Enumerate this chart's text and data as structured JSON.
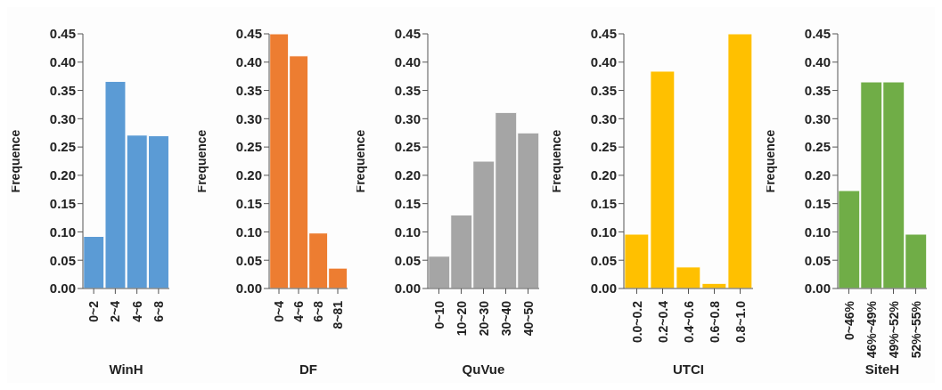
{
  "chart_data": [
    {
      "type": "bar",
      "categories": [
        "0~2",
        "2~4",
        "4~6",
        "6~8"
      ],
      "values": [
        0.092,
        0.366,
        0.271,
        0.27
      ],
      "color": "#5b9bd5",
      "xlabel": "WinH",
      "ylabel": "Frequence",
      "ylim": [
        0,
        0.45
      ],
      "yticks": [
        {
          "value": 0,
          "label": "0.00"
        },
        {
          "value": 0.05,
          "label": "0.05"
        },
        {
          "value": 0.1,
          "label": "0.10"
        },
        {
          "value": 0.15,
          "label": "0.15"
        },
        {
          "value": 0.2,
          "label": "0.20"
        },
        {
          "value": 0.25,
          "label": "0.25"
        },
        {
          "value": 0.3,
          "label": "0.30"
        },
        {
          "value": 0.35,
          "label": "0.35"
        },
        {
          "value": 0.4,
          "label": "0.40"
        },
        {
          "value": 0.45,
          "label": "0.45"
        }
      ]
    },
    {
      "type": "bar",
      "categories": [
        "0~4",
        "4~6",
        "6~8",
        "8~81"
      ],
      "values": [
        0.45,
        0.411,
        0.098,
        0.036
      ],
      "color": "#ed7d31",
      "xlabel": "DF",
      "ylabel": "Frequence",
      "ylim": [
        0,
        0.45
      ],
      "yticks": [
        {
          "value": 0,
          "label": "0.00"
        },
        {
          "value": 0.05,
          "label": "0.05"
        },
        {
          "value": 0.1,
          "label": "0.10"
        },
        {
          "value": 0.15,
          "label": "0.15"
        },
        {
          "value": 0.2,
          "label": "0.20"
        },
        {
          "value": 0.25,
          "label": "0.25"
        },
        {
          "value": 0.3,
          "label": "0.30"
        },
        {
          "value": 0.35,
          "label": "0.35"
        },
        {
          "value": 0.4,
          "label": "0.40"
        },
        {
          "value": 0.45,
          "label": "0.45"
        }
      ]
    },
    {
      "type": "bar",
      "categories": [
        "0~10",
        "10~20",
        "20~30",
        "30~40",
        "40~50"
      ],
      "values": [
        0.057,
        0.13,
        0.225,
        0.311,
        0.275
      ],
      "color": "#a5a5a5",
      "xlabel": "QuVue",
      "ylabel": "Frequence",
      "ylim": [
        0,
        0.45
      ],
      "yticks": [
        {
          "value": 0,
          "label": "0.00"
        },
        {
          "value": 0.05,
          "label": "0.05"
        },
        {
          "value": 0.1,
          "label": "0.10"
        },
        {
          "value": 0.15,
          "label": "0.15"
        },
        {
          "value": 0.2,
          "label": "0.20"
        },
        {
          "value": 0.25,
          "label": "0.25"
        },
        {
          "value": 0.3,
          "label": "0.30"
        },
        {
          "value": 0.35,
          "label": "0.35"
        },
        {
          "value": 0.4,
          "label": "0.40"
        },
        {
          "value": 0.45,
          "label": "0.45"
        }
      ]
    },
    {
      "type": "bar",
      "categories": [
        "0.0~0.2",
        "0.2~0.4",
        "0.4~0.6",
        "0.6~0.8",
        "0.8~1.0"
      ],
      "values": [
        0.096,
        0.384,
        0.038,
        0.009,
        0.45
      ],
      "color": "#ffc000",
      "xlabel": "UTCI",
      "ylabel": "Frequence",
      "ylim": [
        0,
        0.45
      ],
      "yticks": [
        {
          "value": 0,
          "label": "0.00"
        },
        {
          "value": 0.05,
          "label": "0.05"
        },
        {
          "value": 0.1,
          "label": "0.10"
        },
        {
          "value": 0.15,
          "label": "0.15"
        },
        {
          "value": 0.2,
          "label": "0.20"
        },
        {
          "value": 0.25,
          "label": "0.25"
        },
        {
          "value": 0.3,
          "label": "0.30"
        },
        {
          "value": 0.35,
          "label": "0.35"
        },
        {
          "value": 0.4,
          "label": "0.40"
        },
        {
          "value": 0.45,
          "label": "0.45"
        }
      ]
    },
    {
      "type": "bar",
      "categories": [
        "0~46%",
        "46%~49%",
        "49%~52%",
        "52%~55%"
      ],
      "values": [
        0.173,
        0.365,
        0.365,
        0.096
      ],
      "color": "#70ad47",
      "xlabel": "SiteH",
      "ylabel": "Frequence",
      "ylim": [
        0,
        0.45
      ],
      "yticks": [
        {
          "value": 0,
          "label": "0.00"
        },
        {
          "value": 0.05,
          "label": "0.05"
        },
        {
          "value": 0.1,
          "label": "0.10"
        },
        {
          "value": 0.15,
          "label": "0.15"
        },
        {
          "value": 0.2,
          "label": "0.20"
        },
        {
          "value": 0.25,
          "label": "0.25"
        },
        {
          "value": 0.3,
          "label": "0.30"
        },
        {
          "value": 0.35,
          "label": "0.35"
        },
        {
          "value": 0.4,
          "label": "0.40"
        },
        {
          "value": 0.45,
          "label": "0.45"
        }
      ]
    }
  ]
}
